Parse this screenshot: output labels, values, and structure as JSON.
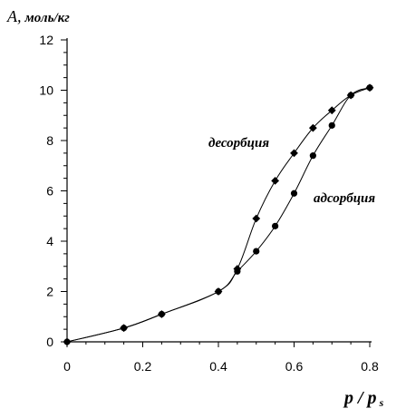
{
  "chart_data": {
    "type": "line",
    "title": "",
    "ylabel": {
      "symbol": "A",
      "sep": ",",
      "units": "моль/кг"
    },
    "xlabel": {
      "main": "p / p",
      "sub": "s"
    },
    "xlim": [
      0,
      0.8
    ],
    "ylim": [
      0,
      12
    ],
    "x_ticks": [
      "0",
      "0.2",
      "0.4",
      "0.6",
      "0.8"
    ],
    "x_tick_values": [
      0,
      0.2,
      0.4,
      0.6,
      0.8
    ],
    "y_ticks": [
      "0",
      "2",
      "4",
      "6",
      "8",
      "10",
      "12"
    ],
    "y_tick_values": [
      0,
      2,
      4,
      6,
      8,
      10,
      12
    ],
    "grid": false,
    "legend": "none",
    "series": [
      {
        "name": "адсорбция",
        "marker": "circle",
        "points": [
          [
            0,
            0
          ],
          [
            0.15,
            0.55
          ],
          [
            0.25,
            1.1
          ],
          [
            0.4,
            2.0
          ],
          [
            0.45,
            2.8
          ],
          [
            0.5,
            3.6
          ],
          [
            0.55,
            4.6
          ],
          [
            0.6,
            5.9
          ],
          [
            0.65,
            7.4
          ],
          [
            0.7,
            8.6
          ],
          [
            0.75,
            9.8
          ],
          [
            0.8,
            10.1
          ]
        ]
      },
      {
        "name": "десорбция",
        "marker": "diamond",
        "points": [
          [
            0,
            0
          ],
          [
            0.15,
            0.55
          ],
          [
            0.25,
            1.1
          ],
          [
            0.4,
            2.0
          ],
          [
            0.45,
            2.9
          ],
          [
            0.5,
            4.9
          ],
          [
            0.55,
            6.4
          ],
          [
            0.6,
            7.5
          ],
          [
            0.65,
            8.5
          ],
          [
            0.7,
            9.2
          ],
          [
            0.75,
            9.8
          ],
          [
            0.8,
            10.1
          ]
        ]
      }
    ],
    "colors": {
      "line": "#000000",
      "marker": "#000000"
    }
  }
}
